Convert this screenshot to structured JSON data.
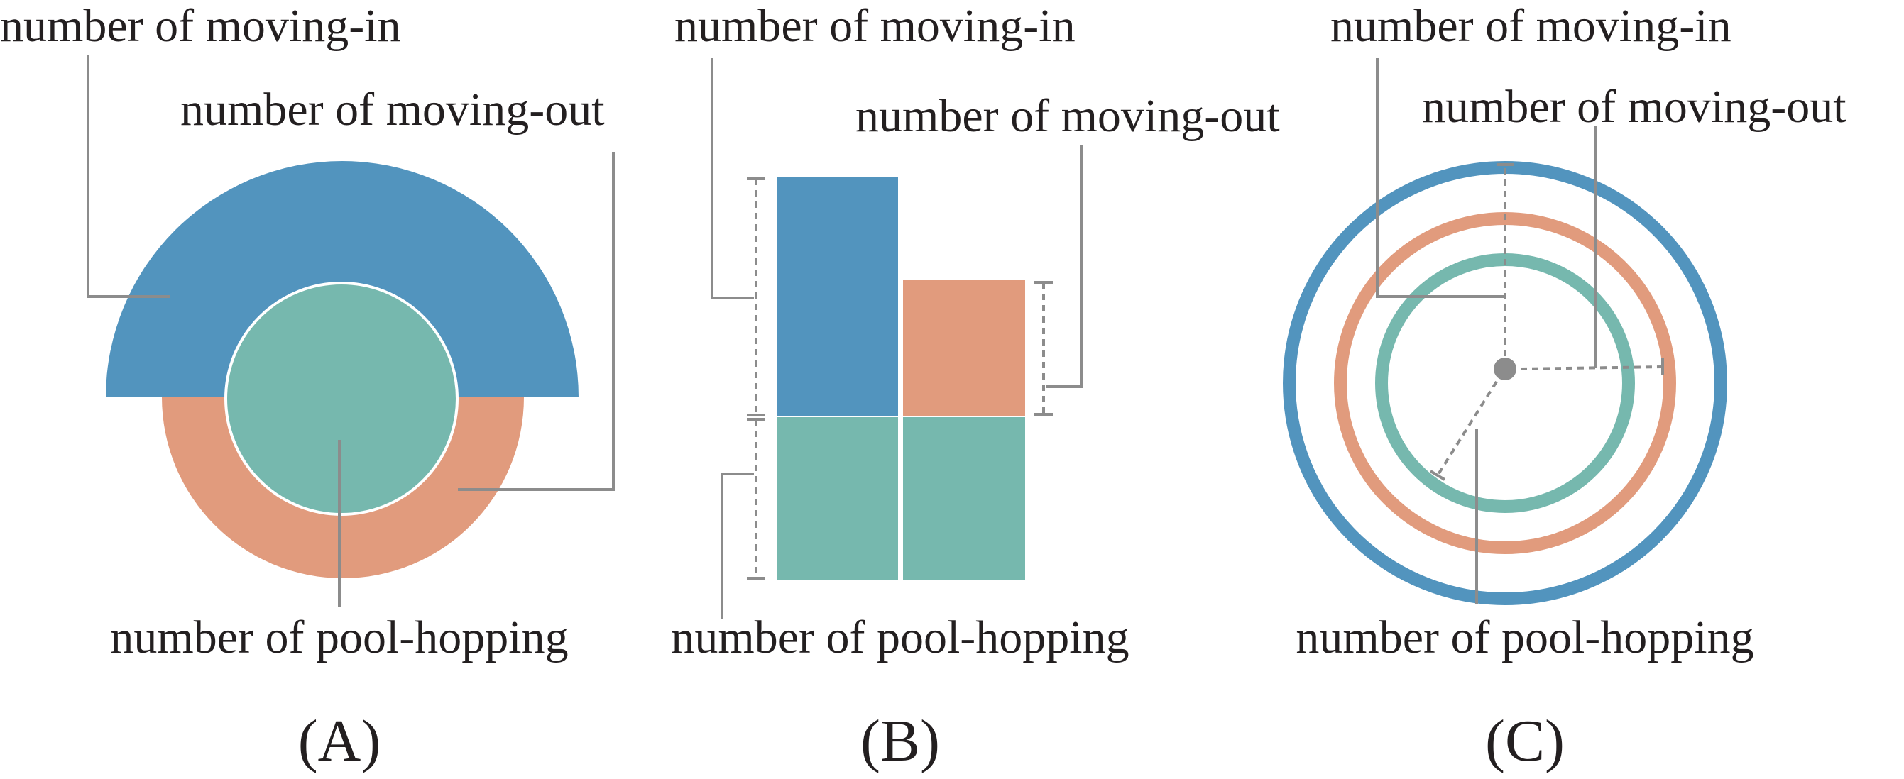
{
  "colors": {
    "moving_in": "#5294be",
    "moving_out": "#e19b7d",
    "pool_hopping": "#76b8ae",
    "leader": "#8c8c8c",
    "text": "#231f20"
  },
  "panel_a": {
    "label_in": "number of moving-in",
    "label_out": "number of moving-out",
    "label_hop": "number of pool-hopping",
    "caption": "(A)"
  },
  "panel_b": {
    "label_in": "number of moving-in",
    "label_out": "number of moving-out",
    "label_hop": "number of pool-hopping",
    "caption": "(B)"
  },
  "panel_c": {
    "label_in": "number of moving-in",
    "label_out": "number of moving-out",
    "label_hop": "number of pool-hopping",
    "caption": "(C)"
  }
}
